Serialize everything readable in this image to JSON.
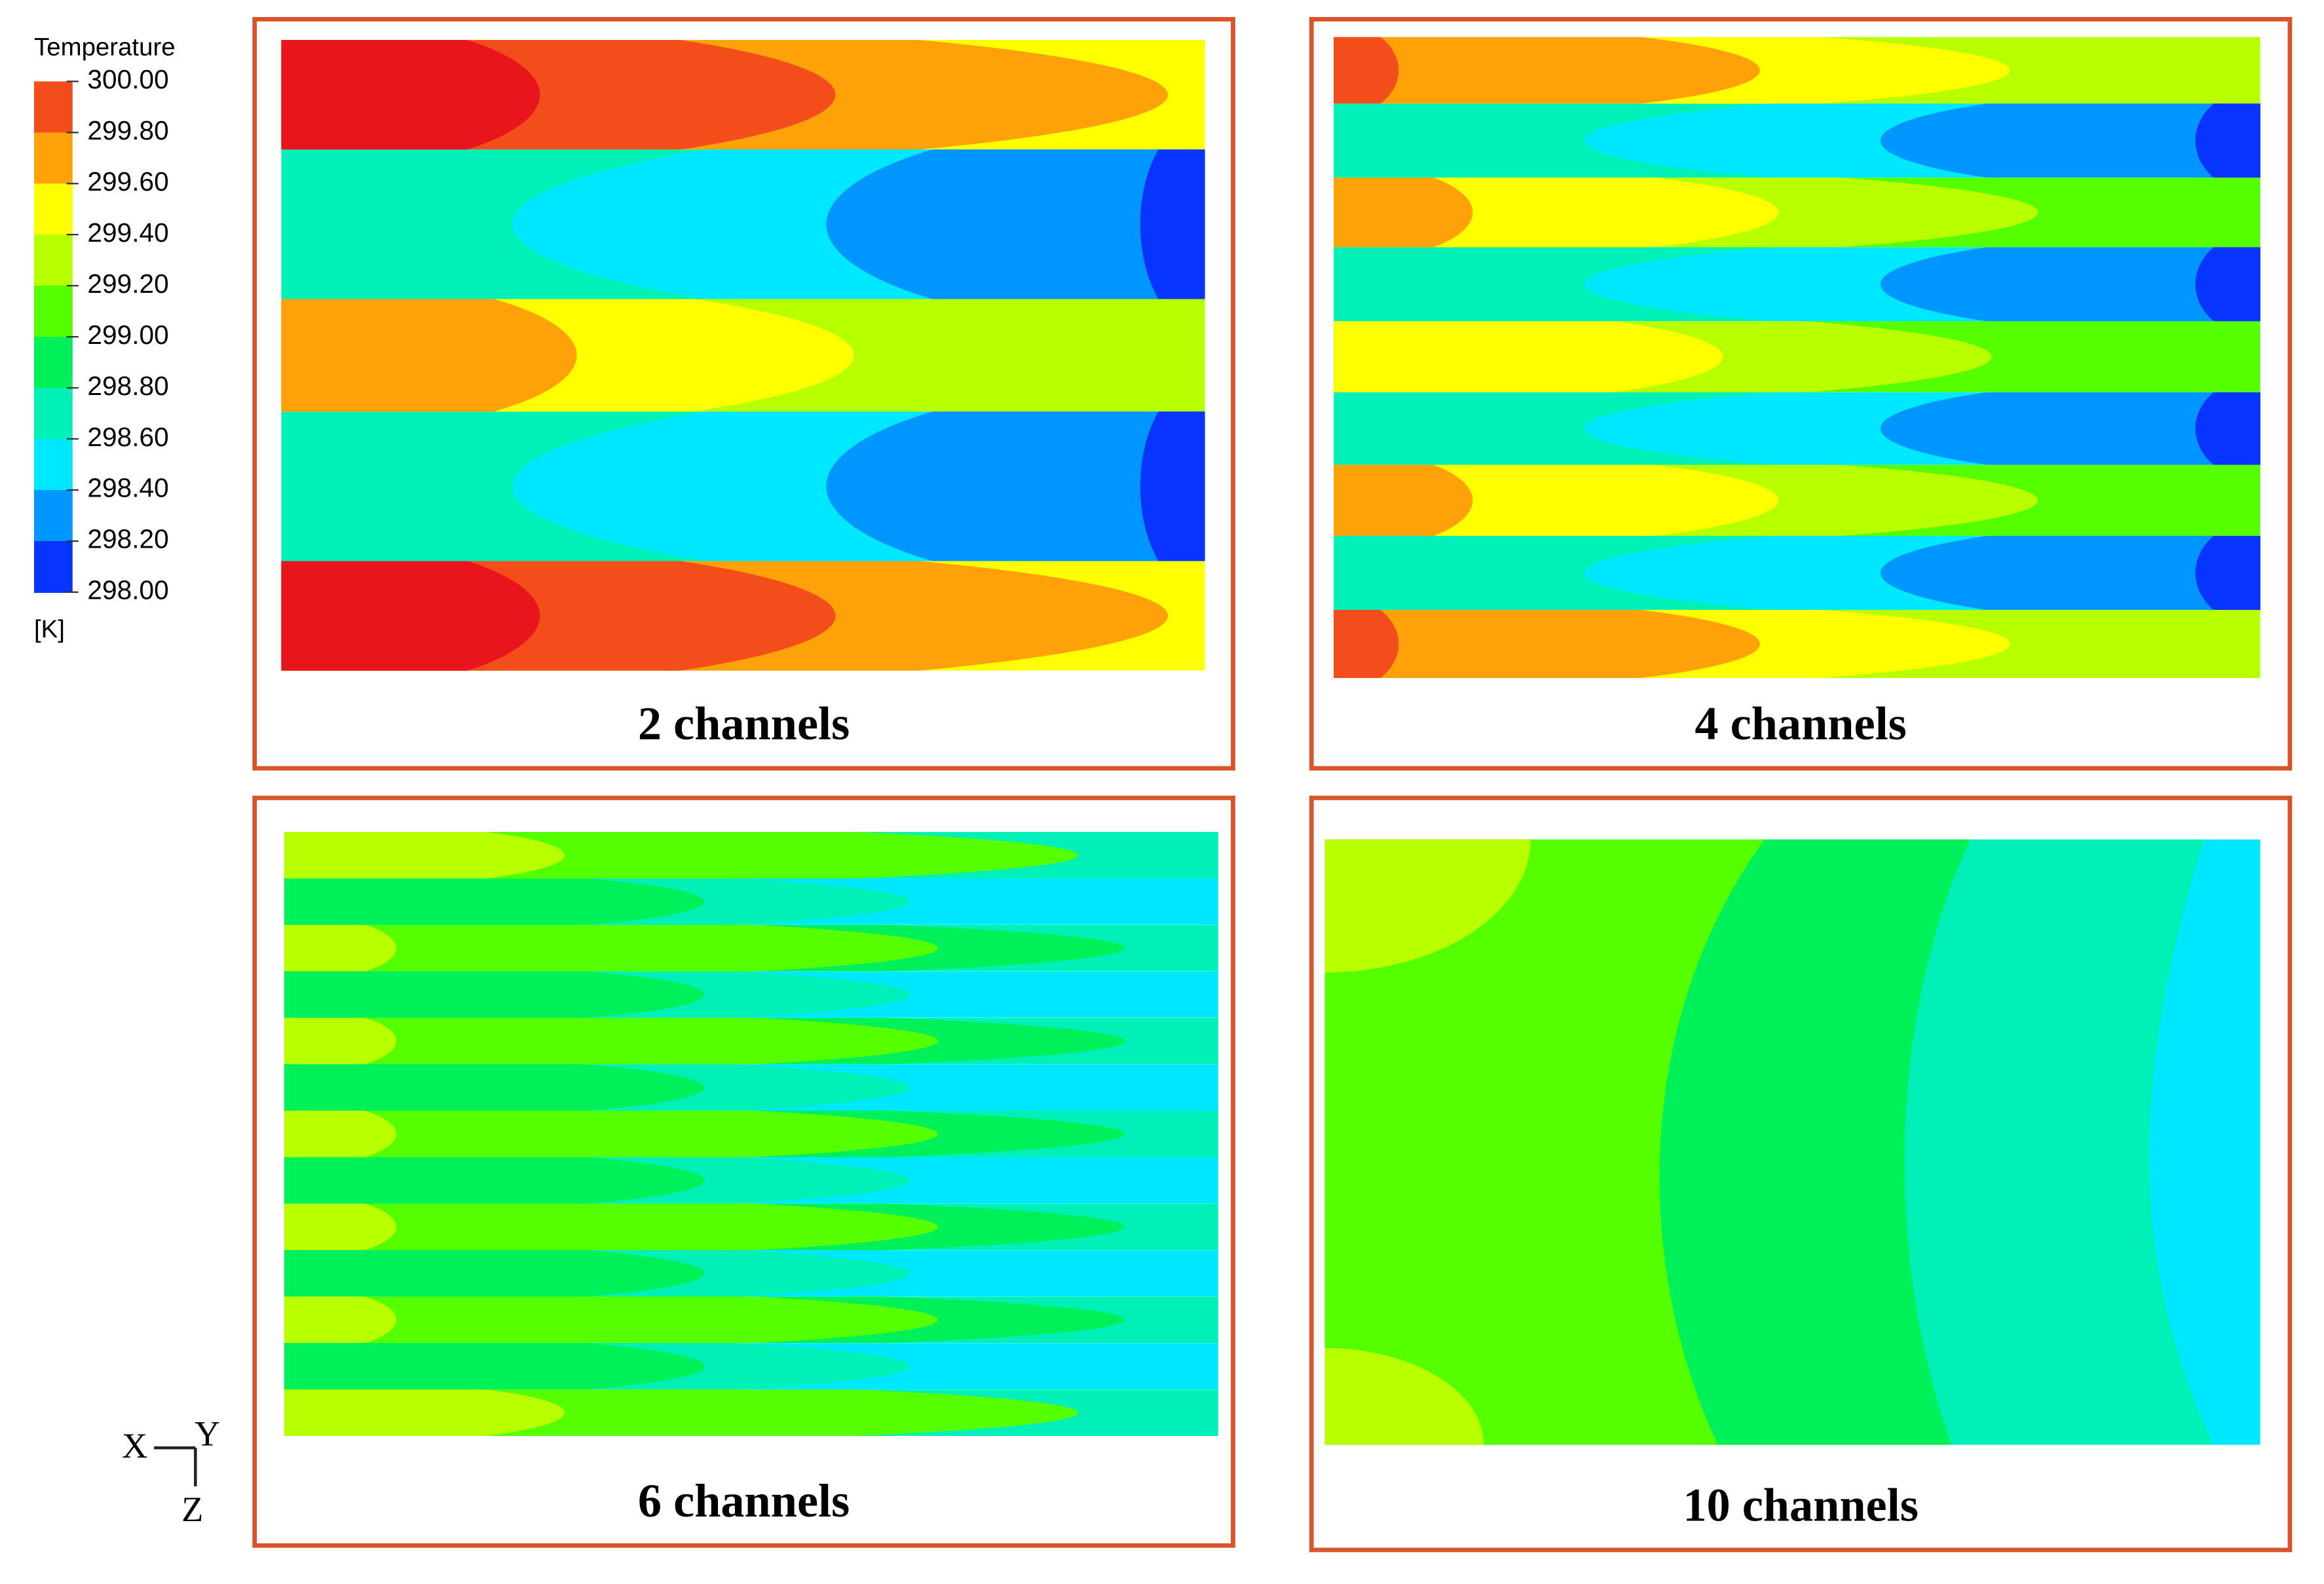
{
  "legend": {
    "title": "Temperature",
    "ticks": [
      "300.00",
      "299.80",
      "299.60",
      "299.40",
      "299.20",
      "299.00",
      "298.80",
      "298.60",
      "298.40",
      "298.20",
      "298.00"
    ],
    "unit": "[K]"
  },
  "panels": [
    {
      "caption": "2 channels"
    },
    {
      "caption": "4 channels"
    },
    {
      "caption": "6 channels"
    },
    {
      "caption": "10 channels"
    }
  ],
  "axes": {
    "x": "X",
    "y": "Y",
    "z": "Z"
  }
}
